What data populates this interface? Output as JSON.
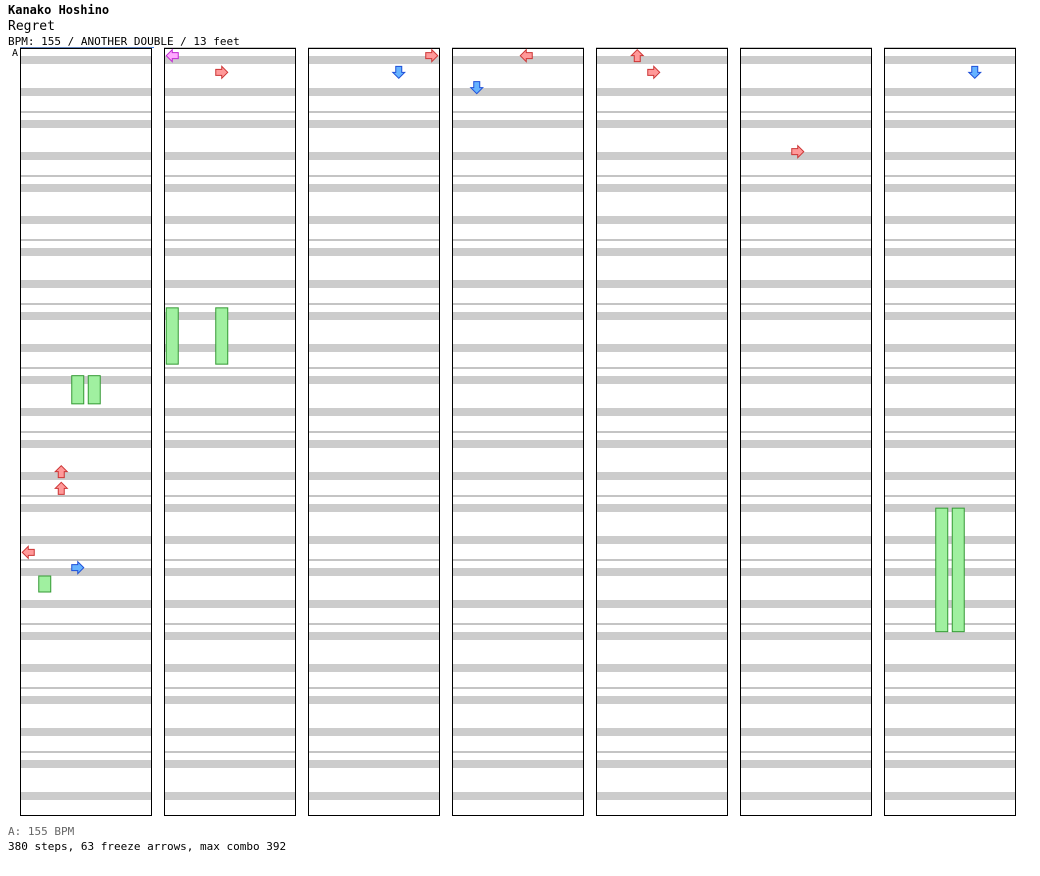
{
  "song": {
    "artist": "Kanako Hoshino",
    "title": "Regret",
    "chart_info": "BPM: 155 / ANOTHER DOUBLE / 13 feet",
    "segment_marker": "A"
  },
  "footer": {
    "bpm_legend": "A: 155 BPM",
    "stats": "380 steps, 63 freeze arrows, max combo 392"
  },
  "chart_data": {
    "type": "step-chart",
    "columns": 7,
    "measures_per_column": 12,
    "lanes": 8,
    "lane_directions": [
      "left",
      "down",
      "up",
      "right",
      "left",
      "down",
      "up",
      "right"
    ],
    "arrow_colors": {
      "quarter": "#ff9999",
      "eighth": "#66b3ff",
      "sixteenth": "#ffaaff",
      "freeze": "#a0f0a0"
    },
    "freeze_lanes": [
      {
        "col": 0,
        "lane": 3,
        "from": 5.12,
        "to": 5.56
      },
      {
        "col": 0,
        "lane": 4,
        "from": 5.12,
        "to": 5.56
      },
      {
        "col": 0,
        "lane": 1,
        "from": 8.25,
        "to": 8.5
      },
      {
        "col": 1,
        "lane": 0,
        "from": 4.06,
        "to": 4.94
      },
      {
        "col": 1,
        "lane": 3,
        "from": 4.06,
        "to": 4.94
      },
      {
        "col": 6,
        "lane": 3,
        "from": 7.19,
        "to": 9.12
      },
      {
        "col": 6,
        "lane": 4,
        "from": 7.19,
        "to": 9.12
      }
    ],
    "notes": [
      {
        "col": 0,
        "lane": 2,
        "measure": 6.62,
        "kind": "quarter"
      },
      {
        "col": 0,
        "lane": 2,
        "measure": 6.88,
        "kind": "quarter"
      },
      {
        "col": 0,
        "lane": 0,
        "measure": 7.88,
        "kind": "quarter"
      },
      {
        "col": 0,
        "lane": 3,
        "measure": 8.12,
        "kind": "eighth"
      },
      {
        "col": 1,
        "lane": 0,
        "measure": 0.12,
        "kind": "sixteenth"
      },
      {
        "col": 1,
        "lane": 3,
        "measure": 0.38,
        "kind": "quarter"
      },
      {
        "col": 2,
        "lane": 7,
        "measure": 0.12,
        "kind": "quarter"
      },
      {
        "col": 2,
        "lane": 5,
        "measure": 0.38,
        "kind": "eighth"
      },
      {
        "col": 3,
        "lane": 4,
        "measure": 0.12,
        "kind": "quarter"
      },
      {
        "col": 3,
        "lane": 1,
        "measure": 0.62,
        "kind": "eighth"
      },
      {
        "col": 4,
        "lane": 2,
        "measure": 0.12,
        "kind": "quarter"
      },
      {
        "col": 4,
        "lane": 3,
        "measure": 0.38,
        "kind": "quarter"
      },
      {
        "col": 5,
        "lane": 3,
        "measure": 1.62,
        "kind": "quarter"
      },
      {
        "col": 6,
        "lane": 5,
        "measure": 0.38,
        "kind": "eighth"
      }
    ]
  }
}
